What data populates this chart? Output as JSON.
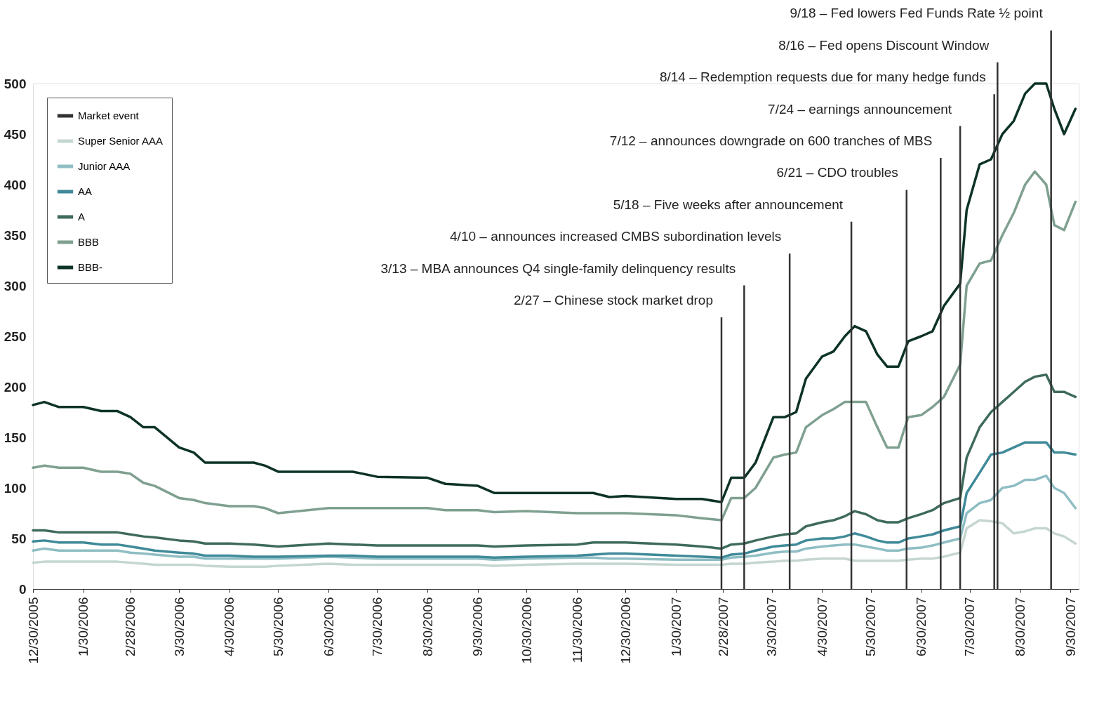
{
  "chart_data": {
    "type": "line",
    "x": [
      "2005-12-30",
      "2006-01-06",
      "2006-01-15",
      "2006-01-30",
      "2006-02-10",
      "2006-02-20",
      "2006-02-28",
      "2006-03-08",
      "2006-03-15",
      "2006-03-30",
      "2006-04-08",
      "2006-04-15",
      "2006-04-30",
      "2006-05-15",
      "2006-05-22",
      "2006-05-30",
      "2006-06-30",
      "2006-07-15",
      "2006-07-30",
      "2006-08-30",
      "2006-09-10",
      "2006-09-30",
      "2006-10-10",
      "2006-10-30",
      "2006-11-30",
      "2006-12-10",
      "2006-12-20",
      "2006-12-30",
      "2007-01-30",
      "2007-02-15",
      "2007-02-27",
      "2007-03-05",
      "2007-03-13",
      "2007-03-20",
      "2007-03-31",
      "2007-04-07",
      "2007-04-14",
      "2007-04-20",
      "2007-04-30",
      "2007-05-07",
      "2007-05-14",
      "2007-05-20",
      "2007-05-27",
      "2007-06-03",
      "2007-06-09",
      "2007-06-16",
      "2007-06-22",
      "2007-06-30",
      "2007-07-07",
      "2007-07-14",
      "2007-07-24",
      "2007-07-28",
      "2007-08-05",
      "2007-08-12",
      "2007-08-19",
      "2007-08-26",
      "2007-09-02",
      "2007-09-08",
      "2007-09-15",
      "2007-09-20",
      "2007-09-26",
      "2007-10-03"
    ],
    "series": [
      {
        "name": "Super Senior AAA",
        "color": "#c5d6d1",
        "values": [
          26,
          27,
          27,
          27,
          27,
          27,
          26,
          25,
          24,
          24,
          24,
          23,
          22,
          22,
          22,
          23,
          25,
          24,
          24,
          24,
          24,
          24,
          23,
          24,
          25,
          25,
          25,
          25,
          24,
          24,
          24,
          25,
          25,
          26,
          27,
          28,
          28,
          29,
          30,
          30,
          30,
          28,
          28,
          28,
          28,
          28,
          29,
          30,
          30,
          32,
          36,
          60,
          68,
          67,
          65,
          55,
          57,
          60,
          60,
          55,
          52,
          45
        ]
      },
      {
        "name": "Junior AAA",
        "color": "#8fbec4",
        "values": [
          38,
          40,
          38,
          38,
          38,
          38,
          36,
          35,
          34,
          32,
          32,
          30,
          30,
          30,
          30,
          30,
          32,
          31,
          30,
          30,
          30,
          30,
          29,
          30,
          31,
          31,
          30,
          30,
          29,
          29,
          29,
          31,
          32,
          33,
          36,
          37,
          37,
          40,
          42,
          43,
          44,
          44,
          42,
          40,
          38,
          38,
          40,
          41,
          43,
          46,
          50,
          75,
          85,
          88,
          100,
          102,
          108,
          108,
          112,
          100,
          95,
          80
        ]
      },
      {
        "name": "AA",
        "color": "#3f8a99",
        "values": [
          47,
          48,
          46,
          46,
          44,
          44,
          42,
          40,
          38,
          36,
          35,
          33,
          33,
          32,
          32,
          32,
          33,
          33,
          32,
          32,
          32,
          32,
          31,
          32,
          33,
          34,
          35,
          35,
          33,
          32,
          31,
          34,
          35,
          38,
          42,
          43,
          44,
          48,
          50,
          50,
          52,
          55,
          52,
          48,
          46,
          46,
          50,
          52,
          54,
          58,
          62,
          95,
          115,
          133,
          135,
          140,
          145,
          145,
          145,
          135,
          135,
          133
        ]
      },
      {
        "name": "A",
        "color": "#3f6b5a",
        "values": [
          58,
          58,
          56,
          56,
          56,
          56,
          54,
          52,
          51,
          48,
          47,
          45,
          45,
          44,
          43,
          42,
          45,
          44,
          43,
          43,
          43,
          43,
          42,
          43,
          44,
          46,
          46,
          46,
          44,
          42,
          40,
          44,
          45,
          48,
          52,
          54,
          55,
          62,
          66,
          68,
          72,
          77,
          74,
          68,
          66,
          66,
          70,
          74,
          78,
          85,
          90,
          130,
          160,
          175,
          185,
          195,
          205,
          210,
          212,
          195,
          195,
          190
        ]
      },
      {
        "name": "BBB",
        "color": "#7fa090",
        "values": [
          120,
          122,
          120,
          120,
          116,
          116,
          114,
          105,
          102,
          90,
          88,
          85,
          82,
          82,
          80,
          75,
          80,
          80,
          80,
          80,
          78,
          78,
          76,
          77,
          75,
          75,
          75,
          75,
          73,
          70,
          68,
          90,
          90,
          100,
          130,
          133,
          135,
          160,
          172,
          178,
          185,
          185,
          185,
          160,
          140,
          140,
          170,
          172,
          180,
          190,
          222,
          300,
          322,
          325,
          350,
          372,
          400,
          413,
          400,
          360,
          355,
          383
        ]
      },
      {
        "name": "BBB-",
        "color": "#0d3326",
        "values": [
          182,
          185,
          180,
          180,
          176,
          176,
          170,
          160,
          160,
          140,
          135,
          125,
          125,
          125,
          122,
          116,
          116,
          116,
          111,
          110,
          104,
          102,
          95,
          95,
          95,
          95,
          91,
          92,
          89,
          89,
          86,
          110,
          110,
          125,
          170,
          170,
          175,
          208,
          230,
          235,
          250,
          260,
          255,
          232,
          220,
          220,
          245,
          250,
          255,
          280,
          302,
          375,
          420,
          425,
          450,
          463,
          490,
          500,
          500,
          475,
          450,
          475
        ]
      }
    ],
    "xlim": [
      "2005-12-30",
      "2007-10-05"
    ],
    "xticks": [
      {
        "value": "2005-12-30",
        "label": "12/30/2005"
      },
      {
        "value": "2006-01-30",
        "label": "1/30/2006"
      },
      {
        "value": "2006-02-28",
        "label": "2/28/2006"
      },
      {
        "value": "2006-03-30",
        "label": "3/30/2006"
      },
      {
        "value": "2006-04-30",
        "label": "4/30/2006"
      },
      {
        "value": "2006-05-30",
        "label": "5/30/2006"
      },
      {
        "value": "2006-06-30",
        "label": "6/30/2006"
      },
      {
        "value": "2006-07-30",
        "label": "7/30/2006"
      },
      {
        "value": "2006-08-30",
        "label": "8/30/2006"
      },
      {
        "value": "2006-09-30",
        "label": "9/30/2006"
      },
      {
        "value": "2006-10-30",
        "label": "10/30/2006"
      },
      {
        "value": "2006-11-30",
        "label": "11/30/2006"
      },
      {
        "value": "2006-12-30",
        "label": "12/30/2006"
      },
      {
        "value": "2007-01-30",
        "label": "1/30/2007"
      },
      {
        "value": "2007-02-28",
        "label": "2/28/2007"
      },
      {
        "value": "2007-03-30",
        "label": "3/30/2007"
      },
      {
        "value": "2007-04-30",
        "label": "4/30/2007"
      },
      {
        "value": "2007-05-30",
        "label": "5/30/2007"
      },
      {
        "value": "2007-06-30",
        "label": "6/30/2007"
      },
      {
        "value": "2007-07-30",
        "label": "7/30/2007"
      },
      {
        "value": "2007-08-30",
        "label": "8/30/2007"
      },
      {
        "value": "2007-09-30",
        "label": "9/30/2007"
      }
    ],
    "ylim": [
      0,
      500
    ],
    "yticks": [
      0,
      50,
      100,
      150,
      200,
      250,
      300,
      350,
      400,
      450,
      500
    ],
    "ref_lines": [
      {
        "axis": "x",
        "value": "2007-02-27",
        "label": "2/27 – Chinese stock market drop",
        "color": "#333333"
      },
      {
        "axis": "x",
        "value": "2007-03-13",
        "label": "3/13 – MBA announces Q4 single-family delinquency results",
        "color": "#333333"
      },
      {
        "axis": "x",
        "value": "2007-04-10",
        "label": "4/10 – announces increased CMBS subordination levels",
        "color": "#333333"
      },
      {
        "axis": "x",
        "value": "2007-05-18",
        "label": "5/18 – Five weeks after announcement",
        "color": "#333333"
      },
      {
        "axis": "x",
        "value": "2007-06-21",
        "label": "6/21 – CDO troubles",
        "color": "#333333"
      },
      {
        "axis": "x",
        "value": "2007-07-12",
        "label": "7/12 – announces downgrade on 600 tranches of MBS",
        "color": "#333333"
      },
      {
        "axis": "x",
        "value": "2007-07-24",
        "label": "7/24 – earnings announcement",
        "color": "#333333"
      },
      {
        "axis": "x",
        "value": "2007-08-14",
        "label": "8/14 – Redemption requests due for many hedge funds",
        "color": "#333333"
      },
      {
        "axis": "x",
        "value": "2007-08-16",
        "label": "8/16 – Fed opens Discount Window",
        "color": "#333333"
      },
      {
        "axis": "x",
        "value": "2007-09-18",
        "label": "9/18 – Fed lowers Fed Funds Rate ½ point",
        "color": "#333333"
      }
    ],
    "annotations": [
      "Market event"
    ],
    "legend": "top left",
    "grid": false,
    "marker": "none",
    "line_style": "solid"
  }
}
